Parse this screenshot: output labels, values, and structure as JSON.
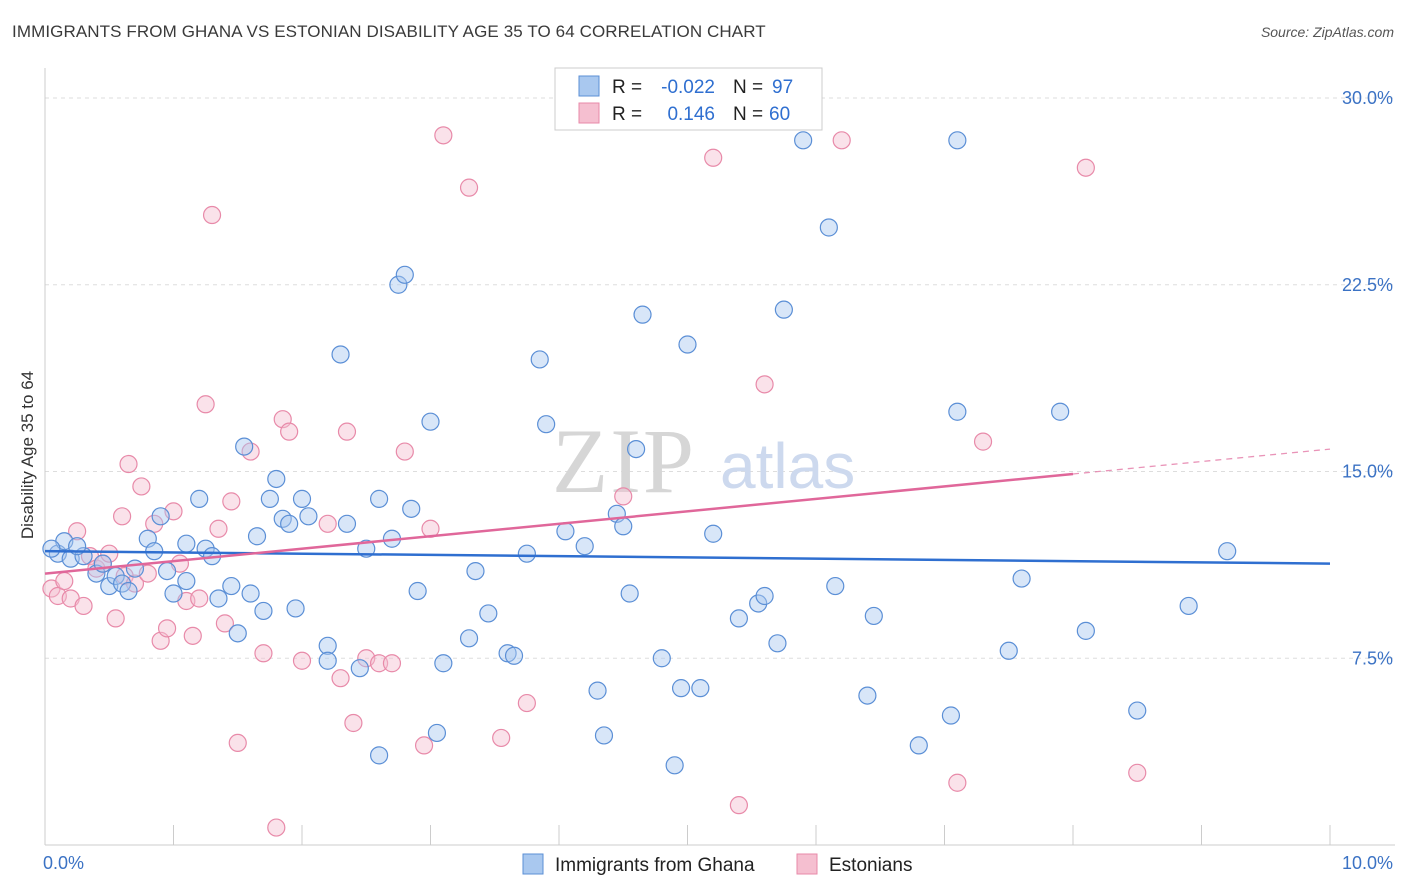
{
  "title": "IMMIGRANTS FROM GHANA VS ESTONIAN DISABILITY AGE 35 TO 64 CORRELATION CHART",
  "source": "Source: ZipAtlas.com",
  "watermark": {
    "zip": "ZIP",
    "atlas": "atlas"
  },
  "colors": {
    "blue_fill": "#a9c8ef",
    "blue_stroke": "#5b8fd6",
    "blue_line": "#2f6fd0",
    "pink_fill": "#f5bfd0",
    "pink_stroke": "#e88aa9",
    "pink_line": "#e0679a",
    "axis_text": "#3b72c4",
    "grid": "#dddddd"
  },
  "legend": {
    "rows": [
      {
        "r_label": "R =",
        "r_value": "-0.022",
        "n_label": "N =",
        "n_value": "97"
      },
      {
        "r_label": "R =",
        "r_value": "0.146",
        "n_label": "N =",
        "n_value": "60"
      }
    ]
  },
  "bottom_legend": [
    "Immigrants from Ghana",
    "Estonians"
  ],
  "chart_data": {
    "type": "scatter",
    "title": "IMMIGRANTS FROM GHANA VS ESTONIAN DISABILITY AGE 35 TO 64 CORRELATION CHART",
    "xlabel": "",
    "ylabel": "Disability Age 35 to 64",
    "xlim": [
      0,
      10
    ],
    "ylim": [
      0,
      30
    ],
    "x_tick_labels": [
      "0.0%",
      "10.0%"
    ],
    "y_ticks": [
      7.5,
      15,
      22.5,
      30
    ],
    "y_tick_labels": [
      "7.5%",
      "15.0%",
      "22.5%",
      "30.0%"
    ],
    "series": [
      {
        "name": "Immigrants from Ghana",
        "color": "blue",
        "R": -0.022,
        "N": 97,
        "trend": {
          "x": [
            0,
            10
          ],
          "y": [
            11.8,
            11.3
          ]
        },
        "points": [
          [
            0.1,
            11.7
          ],
          [
            0.15,
            12.2
          ],
          [
            0.2,
            11.5
          ],
          [
            0.3,
            11.6
          ],
          [
            0.4,
            10.9
          ],
          [
            0.45,
            11.3
          ],
          [
            0.5,
            10.4
          ],
          [
            0.55,
            10.8
          ],
          [
            0.6,
            10.5
          ],
          [
            0.65,
            10.2
          ],
          [
            0.7,
            11.1
          ],
          [
            0.8,
            12.3
          ],
          [
            0.85,
            11.8
          ],
          [
            0.9,
            13.2
          ],
          [
            0.95,
            11.0
          ],
          [
            1.0,
            10.1
          ],
          [
            1.1,
            12.1
          ],
          [
            1.1,
            10.6
          ],
          [
            1.2,
            13.9
          ],
          [
            1.25,
            11.9
          ],
          [
            1.3,
            11.6
          ],
          [
            1.35,
            9.9
          ],
          [
            1.45,
            10.4
          ],
          [
            1.5,
            8.5
          ],
          [
            1.55,
            16.0
          ],
          [
            1.6,
            10.1
          ],
          [
            1.65,
            12.4
          ],
          [
            1.7,
            9.4
          ],
          [
            1.75,
            13.9
          ],
          [
            1.8,
            14.7
          ],
          [
            1.85,
            13.1
          ],
          [
            1.9,
            12.9
          ],
          [
            1.95,
            9.5
          ],
          [
            2.0,
            13.9
          ],
          [
            2.05,
            13.2
          ],
          [
            2.2,
            8.0
          ],
          [
            2.2,
            7.4
          ],
          [
            2.3,
            19.7
          ],
          [
            2.35,
            12.9
          ],
          [
            2.45,
            7.1
          ],
          [
            2.5,
            11.9
          ],
          [
            2.6,
            13.9
          ],
          [
            2.6,
            3.6
          ],
          [
            2.7,
            12.3
          ],
          [
            2.75,
            22.5
          ],
          [
            2.8,
            22.9
          ],
          [
            2.85,
            13.5
          ],
          [
            2.9,
            10.2
          ],
          [
            3.0,
            17.0
          ],
          [
            3.05,
            4.5
          ],
          [
            3.1,
            7.3
          ],
          [
            3.3,
            8.3
          ],
          [
            3.35,
            11.0
          ],
          [
            3.45,
            9.3
          ],
          [
            3.6,
            7.7
          ],
          [
            3.65,
            7.6
          ],
          [
            3.75,
            11.7
          ],
          [
            3.85,
            19.5
          ],
          [
            3.9,
            16.9
          ],
          [
            4.05,
            12.6
          ],
          [
            4.2,
            12.0
          ],
          [
            4.3,
            6.2
          ],
          [
            4.35,
            4.4
          ],
          [
            4.45,
            13.3
          ],
          [
            4.5,
            12.8
          ],
          [
            4.55,
            10.1
          ],
          [
            4.6,
            15.9
          ],
          [
            4.65,
            21.3
          ],
          [
            4.8,
            7.5
          ],
          [
            4.9,
            3.2
          ],
          [
            4.95,
            6.3
          ],
          [
            5.0,
            20.1
          ],
          [
            5.1,
            6.3
          ],
          [
            5.2,
            12.5
          ],
          [
            5.4,
            9.1
          ],
          [
            5.55,
            9.7
          ],
          [
            5.6,
            10.0
          ],
          [
            5.7,
            8.1
          ],
          [
            5.75,
            21.5
          ],
          [
            5.9,
            28.3
          ],
          [
            6.1,
            24.8
          ],
          [
            6.15,
            10.4
          ],
          [
            6.4,
            6.0
          ],
          [
            6.45,
            9.2
          ],
          [
            6.8,
            4.0
          ],
          [
            7.05,
            5.2
          ],
          [
            7.1,
            28.3
          ],
          [
            7.1,
            17.4
          ],
          [
            7.5,
            7.8
          ],
          [
            7.6,
            10.7
          ],
          [
            7.9,
            17.4
          ],
          [
            8.1,
            8.6
          ],
          [
            8.5,
            5.4
          ],
          [
            8.9,
            9.6
          ],
          [
            9.2,
            11.8
          ],
          [
            0.05,
            11.9
          ],
          [
            0.25,
            12.0
          ]
        ]
      },
      {
        "name": "Estonians",
        "color": "pink",
        "R": 0.146,
        "N": 60,
        "trend": {
          "x": [
            0,
            8
          ],
          "y": [
            10.9,
            14.9
          ]
        },
        "trend_dashed": {
          "x": [
            8,
            10
          ],
          "y": [
            14.9,
            15.9
          ]
        },
        "points": [
          [
            0.05,
            10.3
          ],
          [
            0.1,
            10.0
          ],
          [
            0.15,
            10.6
          ],
          [
            0.2,
            9.9
          ],
          [
            0.25,
            12.6
          ],
          [
            0.3,
            9.6
          ],
          [
            0.35,
            11.6
          ],
          [
            0.4,
            11.1
          ],
          [
            0.45,
            11.3
          ],
          [
            0.5,
            11.7
          ],
          [
            0.55,
            9.1
          ],
          [
            0.6,
            13.2
          ],
          [
            0.62,
            10.8
          ],
          [
            0.65,
            15.3
          ],
          [
            0.7,
            10.5
          ],
          [
            0.75,
            14.4
          ],
          [
            0.8,
            10.9
          ],
          [
            0.85,
            12.9
          ],
          [
            0.9,
            8.2
          ],
          [
            0.95,
            8.7
          ],
          [
            1.0,
            13.4
          ],
          [
            1.05,
            11.3
          ],
          [
            1.1,
            9.8
          ],
          [
            1.15,
            8.4
          ],
          [
            1.2,
            9.9
          ],
          [
            1.25,
            17.7
          ],
          [
            1.3,
            25.3
          ],
          [
            1.35,
            12.7
          ],
          [
            1.4,
            8.9
          ],
          [
            1.45,
            13.8
          ],
          [
            1.5,
            4.1
          ],
          [
            1.6,
            15.8
          ],
          [
            1.7,
            7.7
          ],
          [
            1.8,
            0.7
          ],
          [
            1.85,
            17.1
          ],
          [
            1.9,
            16.6
          ],
          [
            2.0,
            7.4
          ],
          [
            2.2,
            12.9
          ],
          [
            2.3,
            6.7
          ],
          [
            2.35,
            16.6
          ],
          [
            2.4,
            4.9
          ],
          [
            2.5,
            7.5
          ],
          [
            2.6,
            7.3
          ],
          [
            2.7,
            7.3
          ],
          [
            2.8,
            15.8
          ],
          [
            2.95,
            4.0
          ],
          [
            3.0,
            12.7
          ],
          [
            3.1,
            28.5
          ],
          [
            3.3,
            26.4
          ],
          [
            3.55,
            4.3
          ],
          [
            3.75,
            5.7
          ],
          [
            4.5,
            14.0
          ],
          [
            5.2,
            27.6
          ],
          [
            5.4,
            1.6
          ],
          [
            5.6,
            18.5
          ],
          [
            6.2,
            28.3
          ],
          [
            7.1,
            2.5
          ],
          [
            7.3,
            16.2
          ],
          [
            8.1,
            27.2
          ],
          [
            8.5,
            2.9
          ]
        ]
      }
    ]
  }
}
